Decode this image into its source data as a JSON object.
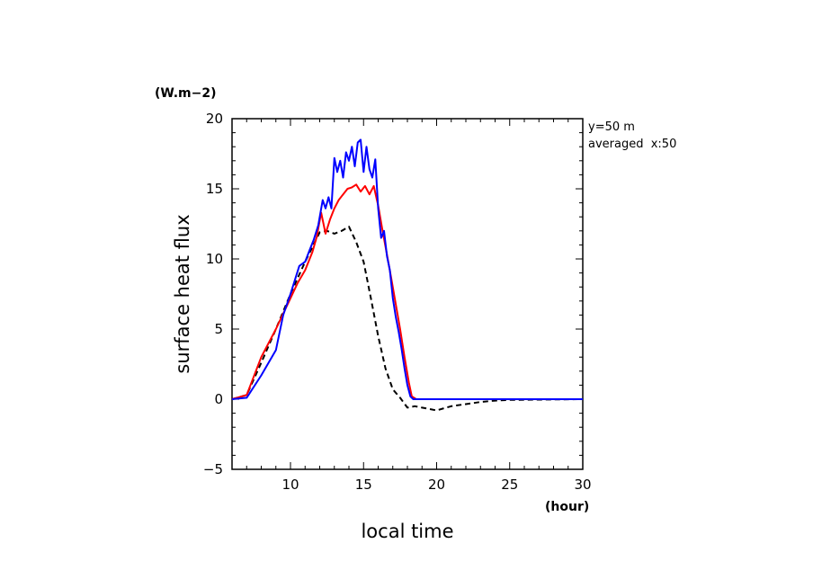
{
  "chart_data": {
    "type": "line",
    "title": "",
    "xlabel": "local time",
    "ylabel": "surface heat flux",
    "x_unit": "(hour)",
    "y_unit": "(W.m−2)",
    "xlim": [
      6,
      30
    ],
    "ylim": [
      -5,
      20
    ],
    "xticks": [
      10,
      15,
      20,
      25,
      30
    ],
    "yticks": [
      -5,
      0,
      5,
      10,
      15,
      20
    ],
    "annotations": [
      "y=50 m",
      "averaged  x:50"
    ],
    "grid": false,
    "series": [
      {
        "color": "#000000",
        "style": "dashed",
        "x": [
          6,
          7,
          8,
          9,
          10,
          11,
          12,
          12.5,
          13,
          13.5,
          14,
          14.5,
          15,
          15.5,
          16,
          16.5,
          17,
          17.5,
          18,
          18.5,
          19,
          19.5,
          20,
          20.5,
          21,
          22,
          23,
          24,
          25,
          30
        ],
        "y": [
          0,
          0.3,
          2.6,
          5.0,
          7.5,
          9.8,
          11.9,
          12.0,
          11.8,
          12.0,
          12.3,
          11.2,
          9.8,
          7.2,
          4.5,
          2.2,
          0.7,
          0.1,
          -0.6,
          -0.5,
          -0.6,
          -0.7,
          -0.8,
          -0.65,
          -0.5,
          -0.35,
          -0.2,
          -0.1,
          -0.05,
          0
        ]
      },
      {
        "color": "#ff0000",
        "style": "solid",
        "x": [
          6,
          7,
          8,
          9,
          10,
          10.5,
          11,
          11.5,
          11.8,
          12.1,
          12.4,
          12.7,
          13,
          13.3,
          13.6,
          13.9,
          14.2,
          14.5,
          14.8,
          15.1,
          15.4,
          15.7,
          16,
          16.3,
          16.6,
          16.9,
          17.2,
          17.5,
          17.8,
          18.1,
          18.3,
          18.6,
          19,
          30
        ],
        "y": [
          0,
          0.3,
          3.0,
          5.0,
          7.2,
          8.3,
          9.2,
          10.5,
          11.6,
          13.3,
          11.8,
          12.8,
          13.6,
          14.2,
          14.6,
          15.0,
          15.1,
          15.3,
          14.8,
          15.2,
          14.6,
          15.2,
          13.8,
          12.0,
          10.3,
          8.6,
          6.8,
          5.0,
          3.0,
          1.2,
          0.2,
          0,
          0,
          0
        ]
      },
      {
        "color": "#0000ff",
        "style": "solid",
        "x": [
          6,
          7,
          8,
          9,
          9.5,
          10,
          10.3,
          10.6,
          11,
          11.3,
          11.6,
          11.9,
          12.2,
          12.4,
          12.6,
          12.8,
          13,
          13.2,
          13.4,
          13.6,
          13.8,
          14,
          14.2,
          14.4,
          14.6,
          14.8,
          15,
          15.2,
          15.4,
          15.6,
          15.8,
          16,
          16.2,
          16.4,
          16.6,
          16.8,
          17,
          17.2,
          17.4,
          17.6,
          17.8,
          18.0,
          18.2,
          18.4,
          18.6,
          19,
          30
        ],
        "y": [
          0,
          0.1,
          1.7,
          3.5,
          6.0,
          7.5,
          8.5,
          9.5,
          9.8,
          10.6,
          11.4,
          12.4,
          14.2,
          13.6,
          14.4,
          13.6,
          17.2,
          16.2,
          17.0,
          15.8,
          17.6,
          17.0,
          18.0,
          16.6,
          18.3,
          18.5,
          16.2,
          18.0,
          16.4,
          15.8,
          17.1,
          13.6,
          11.5,
          12.0,
          10.2,
          9.2,
          7.2,
          5.9,
          4.8,
          3.6,
          2.2,
          1.0,
          0.2,
          0,
          0,
          0,
          0
        ]
      }
    ]
  }
}
